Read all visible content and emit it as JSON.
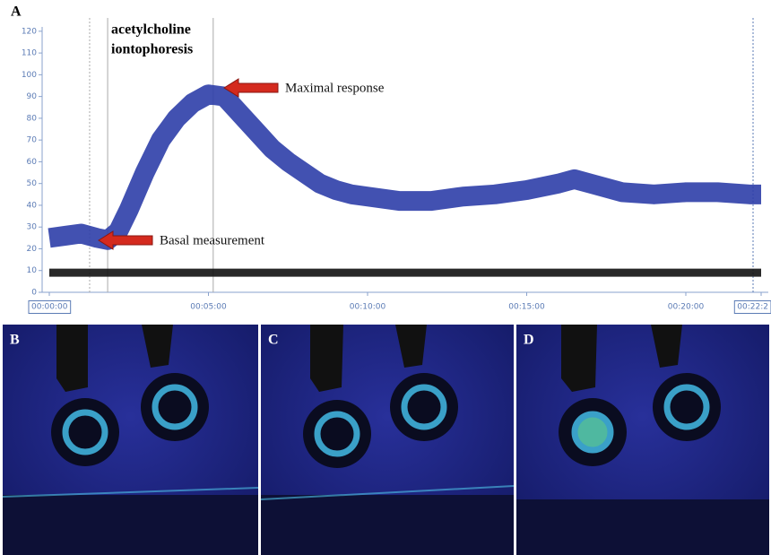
{
  "chart_data": {
    "type": "line",
    "panel_label": "A",
    "annotation_lines": [
      "acetylcholine",
      "iontophoresis"
    ],
    "annotations": [
      "Maximal response",
      "Basal measurement"
    ],
    "xlim": [
      0,
      1342
    ],
    "xticks": [
      {
        "value": 0,
        "label": "00:00:00"
      },
      {
        "value": 300,
        "label": "00:05:00"
      },
      {
        "value": 600,
        "label": "00:10:00"
      },
      {
        "value": 900,
        "label": "00:15:00"
      },
      {
        "value": 1200,
        "label": "00:20:00"
      },
      {
        "value": 1342,
        "label": "00:22:2"
      }
    ],
    "ylim": [
      0,
      122
    ],
    "yticks": [
      0,
      10,
      20,
      30,
      40,
      50,
      60,
      70,
      80,
      90,
      100,
      110,
      120
    ],
    "events": [
      76,
      110,
      309
    ],
    "series": [
      {
        "color": "#2e3ea8",
        "x": [
          0,
          30,
          60,
          90,
          110,
          130,
          150,
          180,
          210,
          240,
          270,
          300,
          330,
          360,
          390,
          420,
          450,
          480,
          510,
          540,
          570,
          600,
          660,
          720,
          780,
          840,
          900,
          960,
          990,
          1020,
          1080,
          1140,
          1200,
          1260,
          1320,
          1342
        ],
        "values": [
          25,
          26,
          27,
          25,
          24,
          28,
          38,
          55,
          70,
          80,
          87,
          91,
          90,
          82,
          74,
          66,
          60,
          55,
          50,
          47,
          45,
          44,
          42,
          42,
          44,
          45,
          47,
          50,
          52,
          50,
          46,
          45,
          46,
          46,
          45,
          45
        ]
      },
      {
        "color": "#111111",
        "x": [
          0,
          300,
          600,
          900,
          1200,
          1342
        ],
        "values": [
          9,
          9,
          9,
          9,
          9,
          9
        ]
      }
    ]
  },
  "image_panels": [
    "B",
    "C",
    "D"
  ]
}
